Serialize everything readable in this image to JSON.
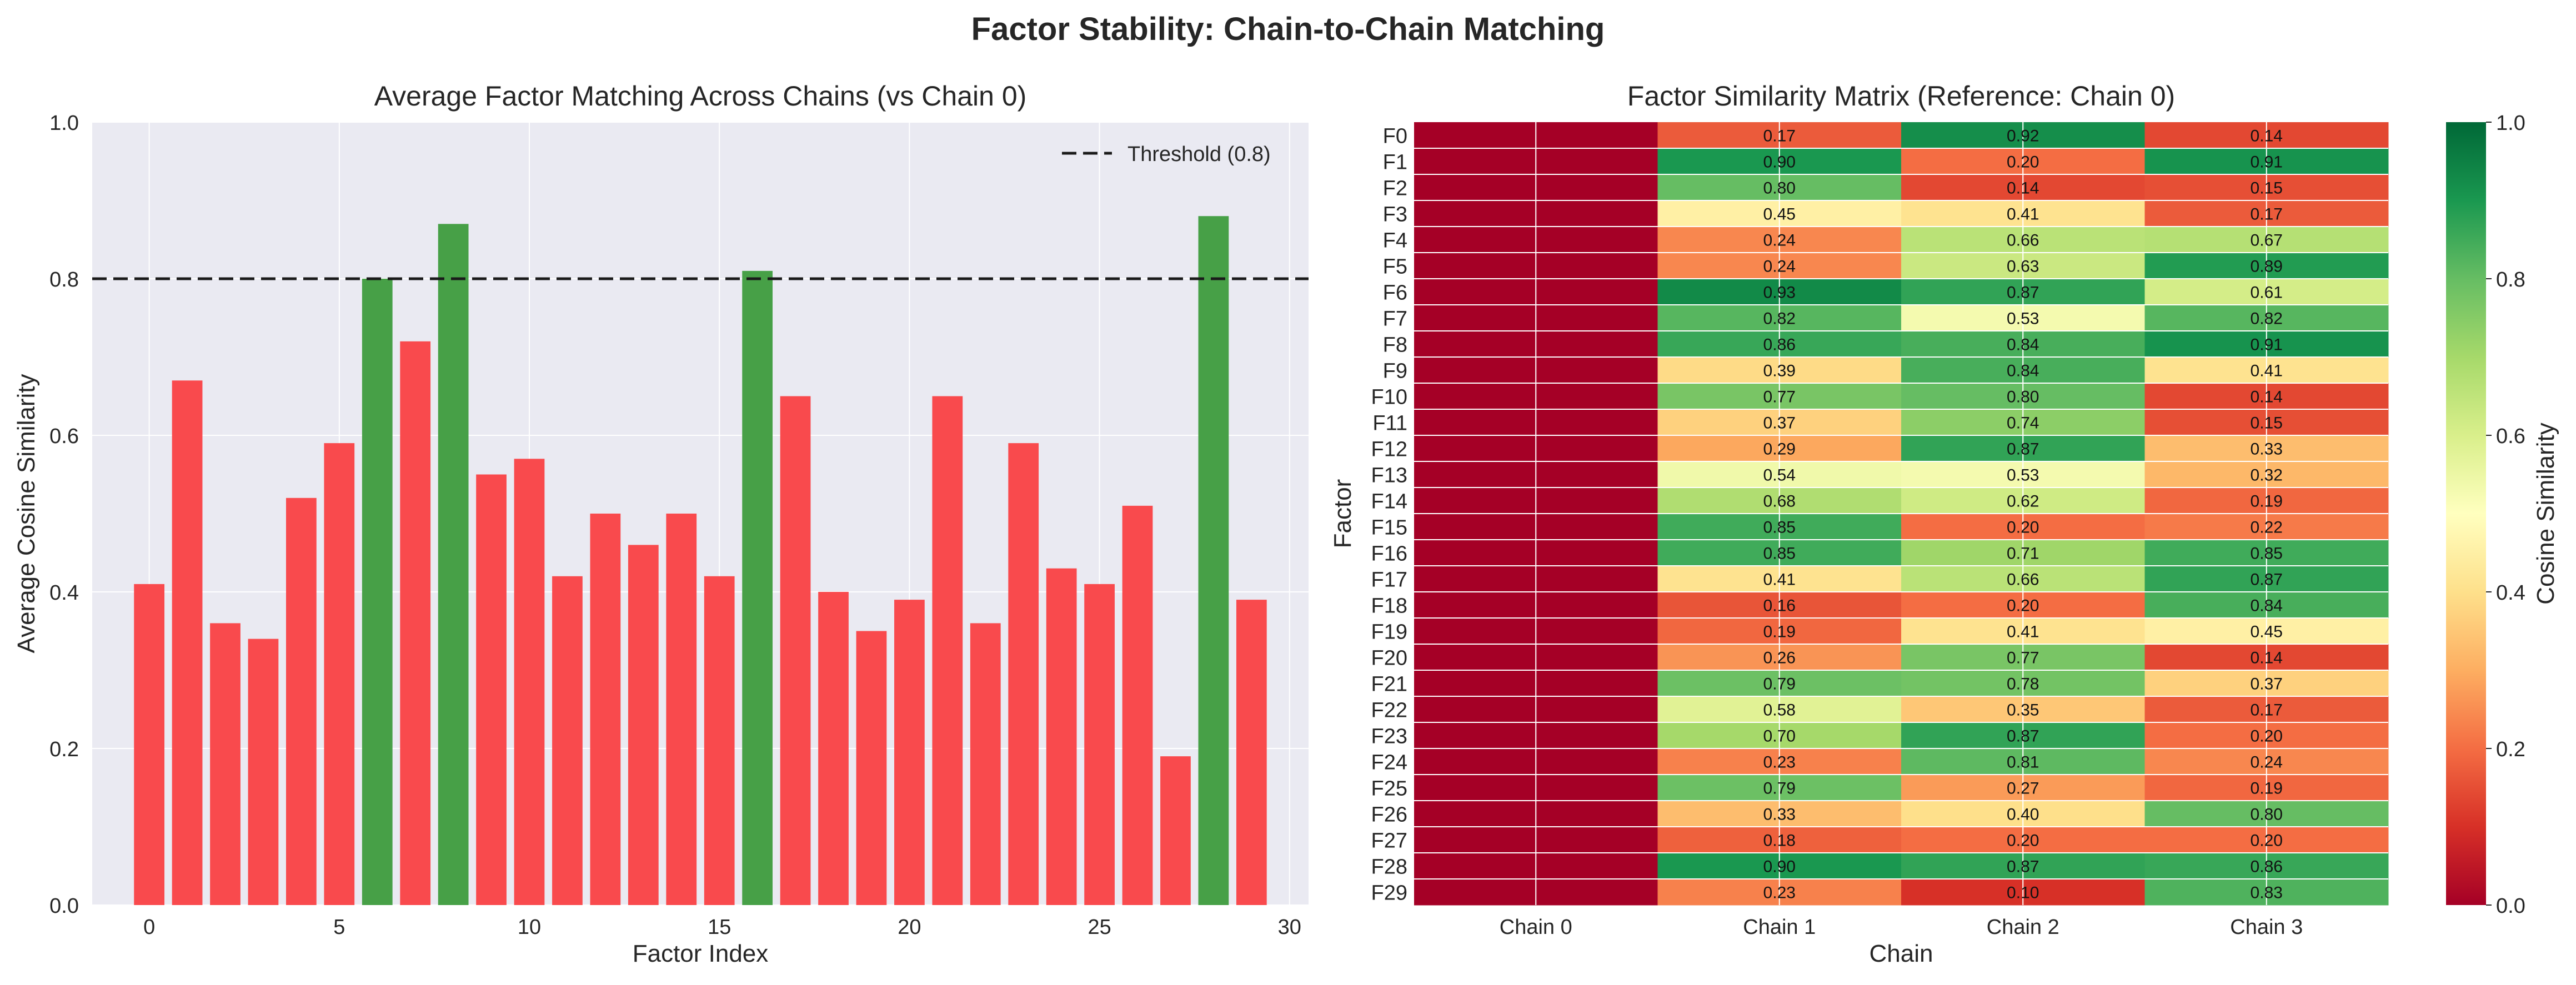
{
  "suptitle": "Factor Stability: Chain-to-Chain Matching",
  "colors": {
    "below_threshold": "#f94a4d",
    "above_threshold": "#47a047",
    "axes_bg": "#eaeaf2",
    "grid": "#ffffff",
    "threshold_line": "#1a1a1a"
  },
  "chart_data": [
    {
      "type": "bar",
      "title": "Average Factor Matching Across Chains (vs Chain 0)",
      "xlabel": "Factor Index",
      "ylabel": "Average Cosine Similarity",
      "xlim": [
        -1.5,
        30.5
      ],
      "ylim": [
        0,
        1.0
      ],
      "xticks": [
        0,
        5,
        10,
        15,
        20,
        25,
        30
      ],
      "yticks": [
        0.0,
        0.2,
        0.4,
        0.6,
        0.8,
        1.0
      ],
      "categories": [
        0,
        1,
        2,
        3,
        4,
        5,
        6,
        7,
        8,
        9,
        10,
        11,
        12,
        13,
        14,
        15,
        16,
        17,
        18,
        19,
        20,
        21,
        22,
        23,
        24,
        25,
        26,
        27,
        28,
        29
      ],
      "values": [
        0.41,
        0.67,
        0.36,
        0.34,
        0.52,
        0.59,
        0.8,
        0.72,
        0.87,
        0.55,
        0.57,
        0.42,
        0.5,
        0.46,
        0.5,
        0.42,
        0.81,
        0.65,
        0.4,
        0.35,
        0.39,
        0.65,
        0.36,
        0.59,
        0.43,
        0.41,
        0.51,
        0.19,
        0.88,
        0.39
      ],
      "threshold": {
        "value": 0.8,
        "label": "Threshold (0.8)"
      },
      "legend": "top-right",
      "grid": true
    },
    {
      "type": "heatmap",
      "title": "Factor Similarity Matrix (Reference: Chain 0)",
      "xlabel": "Chain",
      "ylabel": "Factor",
      "columns": [
        "Chain 0",
        "Chain 1",
        "Chain 2",
        "Chain 3"
      ],
      "rows": [
        "F0",
        "F1",
        "F2",
        "F3",
        "F4",
        "F5",
        "F6",
        "F7",
        "F8",
        "F9",
        "F10",
        "F11",
        "F12",
        "F13",
        "F14",
        "F15",
        "F16",
        "F17",
        "F18",
        "F19",
        "F20",
        "F21",
        "F22",
        "F23",
        "F24",
        "F25",
        "F26",
        "F27",
        "F28",
        "F29"
      ],
      "values": [
        [
          0.0,
          0.17,
          0.92,
          0.14
        ],
        [
          0.0,
          0.9,
          0.2,
          0.91
        ],
        [
          0.0,
          0.8,
          0.14,
          0.15
        ],
        [
          0.0,
          0.45,
          0.41,
          0.17
        ],
        [
          0.0,
          0.24,
          0.66,
          0.67
        ],
        [
          0.0,
          0.24,
          0.63,
          0.89
        ],
        [
          0.0,
          0.93,
          0.87,
          0.61
        ],
        [
          0.0,
          0.82,
          0.53,
          0.82
        ],
        [
          0.0,
          0.86,
          0.84,
          0.91
        ],
        [
          0.0,
          0.39,
          0.84,
          0.41
        ],
        [
          0.0,
          0.77,
          0.8,
          0.14
        ],
        [
          0.0,
          0.37,
          0.74,
          0.15
        ],
        [
          0.0,
          0.29,
          0.87,
          0.33
        ],
        [
          0.0,
          0.54,
          0.53,
          0.32
        ],
        [
          0.0,
          0.68,
          0.62,
          0.19
        ],
        [
          0.0,
          0.85,
          0.2,
          0.22
        ],
        [
          0.0,
          0.85,
          0.71,
          0.85
        ],
        [
          0.0,
          0.41,
          0.66,
          0.87
        ],
        [
          0.0,
          0.16,
          0.2,
          0.84
        ],
        [
          0.0,
          0.19,
          0.41,
          0.45
        ],
        [
          0.0,
          0.26,
          0.77,
          0.14
        ],
        [
          0.0,
          0.79,
          0.78,
          0.37
        ],
        [
          0.0,
          0.58,
          0.35,
          0.17
        ],
        [
          0.0,
          0.7,
          0.87,
          0.2
        ],
        [
          0.0,
          0.23,
          0.81,
          0.24
        ],
        [
          0.0,
          0.79,
          0.27,
          0.19
        ],
        [
          0.0,
          0.33,
          0.4,
          0.8
        ],
        [
          0.0,
          0.18,
          0.2,
          0.2
        ],
        [
          0.0,
          0.9,
          0.87,
          0.86
        ],
        [
          0.0,
          0.23,
          0.1,
          0.83
        ]
      ],
      "annotate_from_column": 1,
      "colormap": "RdYlGn",
      "vmin": 0.0,
      "vmax": 1.0,
      "colorbar": {
        "label": "Cosine Similarity",
        "ticks": [
          0.0,
          0.2,
          0.4,
          0.6,
          0.8,
          1.0
        ]
      }
    }
  ]
}
